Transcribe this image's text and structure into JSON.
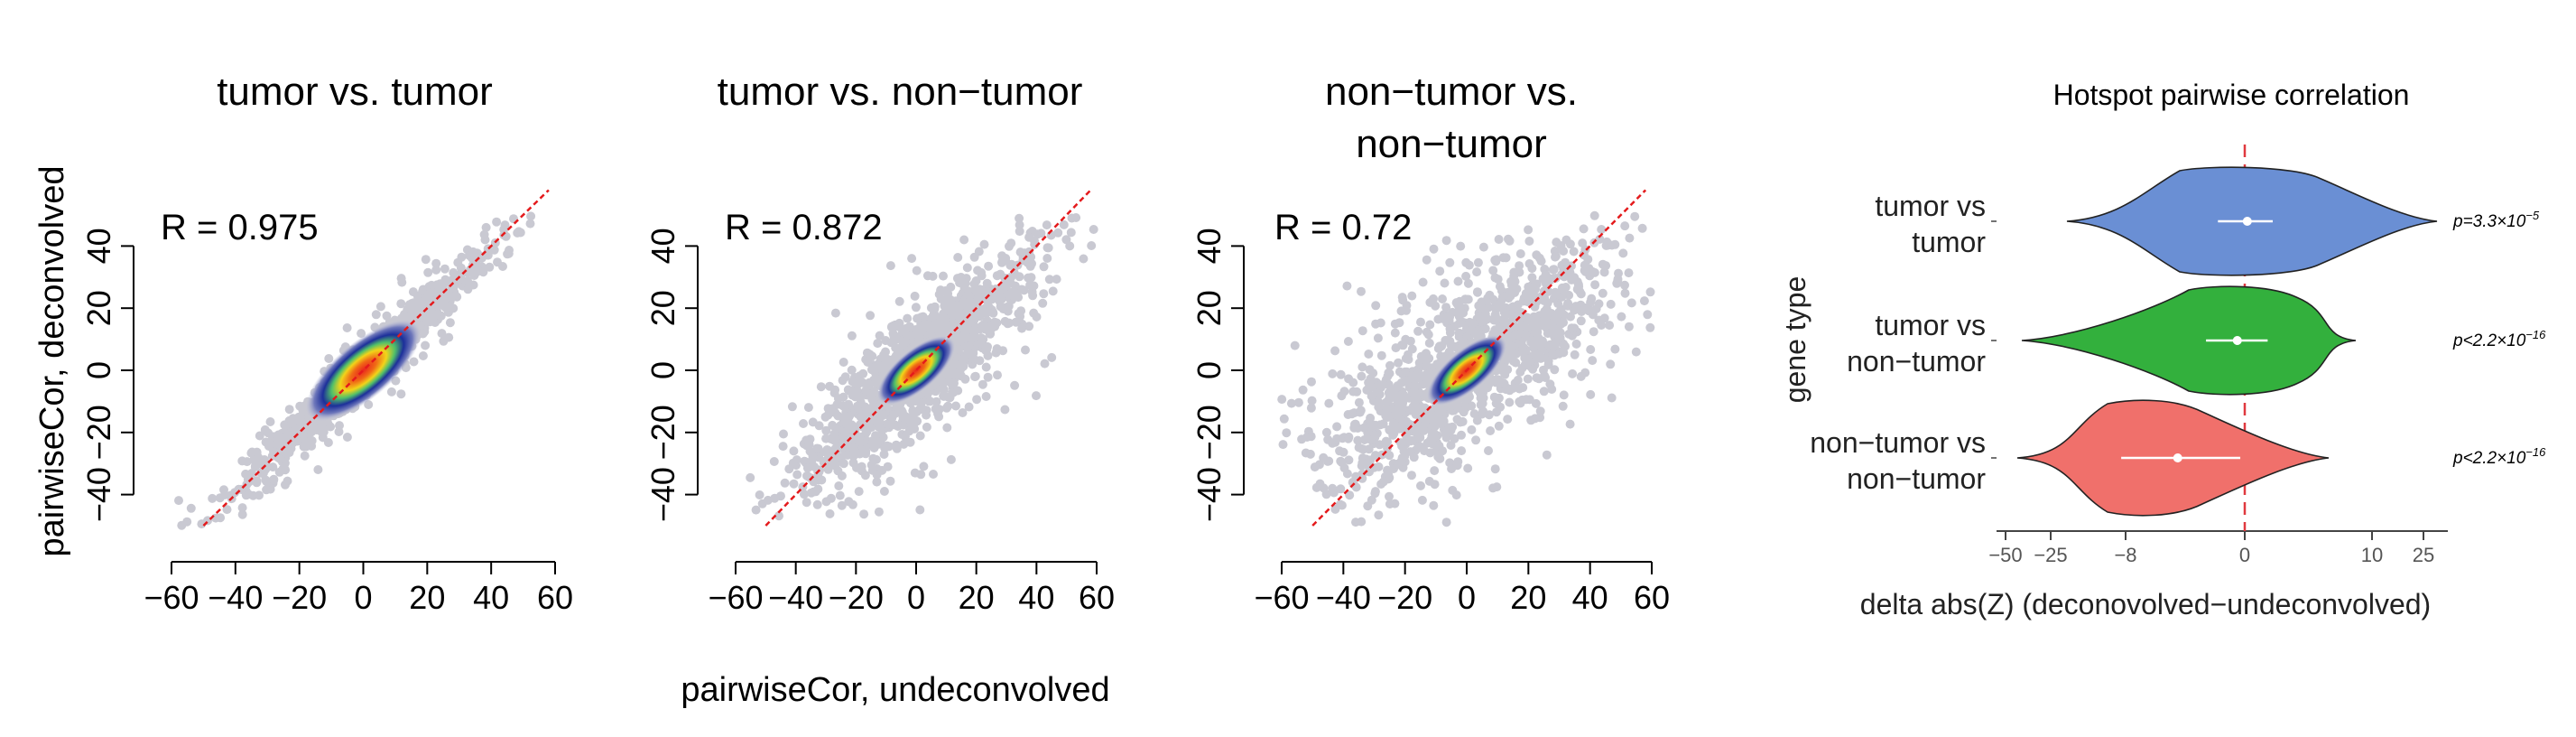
{
  "chart_data": [
    {
      "type": "scatter",
      "title": "tumor vs. tumor",
      "annotation": "R = 0.975",
      "xlabel": "",
      "ylabel": "pairwiseCor, deconvolved",
      "xlim": [
        -60,
        60
      ],
      "ylim": [
        -50,
        50
      ],
      "x_ticks": [
        "−60",
        "−40",
        "−20",
        "0",
        "20",
        "40",
        "60"
      ],
      "y_ticks": [
        "−40",
        "−20",
        "0",
        "20",
        "40"
      ],
      "density_center": [
        0,
        0
      ],
      "density_spread": [
        7,
        7
      ],
      "cloud_spread": [
        15,
        15
      ],
      "correlation": 0.975,
      "reference_line": "y = x",
      "colors": {
        "reference_line": "#e41a1c",
        "background_points": "#c9c9d2"
      }
    },
    {
      "type": "scatter",
      "title": "tumor vs. non−tumor",
      "annotation": "R = 0.872",
      "xlabel": "pairwiseCor, undeconvolved",
      "ylabel": "",
      "xlim": [
        -60,
        60
      ],
      "ylim": [
        -50,
        50
      ],
      "x_ticks": [
        "−60",
        "−40",
        "−20",
        "0",
        "20",
        "40",
        "60"
      ],
      "y_ticks": [
        "−40",
        "−20",
        "0",
        "20",
        "40"
      ],
      "density_center": [
        0,
        0
      ],
      "density_spread": [
        5,
        5
      ],
      "cloud_spread": [
        17,
        17
      ],
      "correlation": 0.872,
      "reference_line": "y = x",
      "colors": {
        "reference_line": "#e41a1c",
        "background_points": "#c9c9d2"
      }
    },
    {
      "type": "scatter",
      "title_lines": [
        "non−tumor vs.",
        "non−tumor"
      ],
      "annotation": "R = 0.72",
      "xlabel": "",
      "ylabel": "",
      "xlim": [
        -60,
        60
      ],
      "ylim": [
        -50,
        50
      ],
      "x_ticks": [
        "−60",
        "−40",
        "−20",
        "0",
        "20",
        "40",
        "60"
      ],
      "y_ticks": [
        "−40",
        "−20",
        "0",
        "20",
        "40"
      ],
      "density_center": [
        0,
        0
      ],
      "density_spread": [
        5,
        5
      ],
      "cloud_spread": [
        20,
        17
      ],
      "correlation": 0.72,
      "reference_line": "y = x",
      "colors": {
        "reference_line": "#e41a1c",
        "background_points": "#c9c9d2"
      }
    },
    {
      "type": "violin",
      "title": "Hotspot pairwise correlation",
      "xlabel": "delta abs(Z) (deconovolved−undeconvolved)",
      "ylabel": "gene type",
      "x_ticks": [
        "−50",
        "−25",
        "−8",
        "0",
        "10",
        "25"
      ],
      "reference_x": 0,
      "groups": [
        {
          "label_lines": [
            "tumor vs",
            "tumor"
          ],
          "color": "#6a8fd4",
          "median": 0.2,
          "ci": [
            -1.8,
            2.2
          ],
          "p_value": "p=3.3×10",
          "p_exp": "−5"
        },
        {
          "label_lines": [
            "tumor vs",
            "non−tumor"
          ],
          "color": "#33b03d",
          "median": -0.5,
          "ci": [
            -2.6,
            1.8
          ],
          "p_value": "p<2.2×10",
          "p_exp": "−16"
        },
        {
          "label_lines": [
            "non−tumor vs",
            "non−tumor"
          ],
          "color": "#f0706b",
          "median": -4.5,
          "ci": [
            -9,
            -0.3
          ],
          "p_value": "p<2.2×10",
          "p_exp": "−16"
        }
      ],
      "colors": {
        "reference_line": "#e0393f",
        "edge": "#222222"
      }
    }
  ]
}
